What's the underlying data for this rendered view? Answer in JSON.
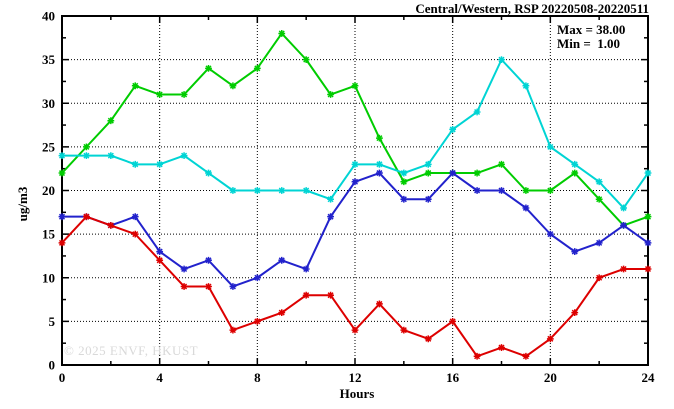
{
  "title": "Central/Western, RSP 20220508-20220511",
  "annotations": {
    "max_label": "Max = 38.00",
    "min_label": "Min =  1.00"
  },
  "watermark": "© 2025 ENVF, HKUST",
  "chart_data": {
    "type": "line",
    "title": "Central/Western, RSP 20220508-20220511",
    "xlabel": "Hours",
    "ylabel": "ug/m3",
    "xlim": [
      0,
      24
    ],
    "ylim": [
      0,
      40
    ],
    "x_major_ticks": [
      0,
      4,
      8,
      12,
      16,
      20,
      24
    ],
    "x_minor_ticks": [
      2,
      6,
      10,
      14,
      18,
      22
    ],
    "y_major_ticks": [
      0,
      5,
      10,
      15,
      20,
      25,
      30,
      35,
      40
    ],
    "y_minor_step": 2.5,
    "grid": "dotted black at major ticks",
    "legend": "none",
    "marker": "star",
    "stat_max": 38.0,
    "stat_min": 1.0,
    "x": [
      0,
      1,
      2,
      3,
      4,
      5,
      6,
      7,
      8,
      9,
      10,
      11,
      12,
      13,
      14,
      15,
      16,
      17,
      18,
      19,
      20,
      21,
      22,
      23,
      24
    ],
    "series": [
      {
        "name": "green-series",
        "color": "#00cc00",
        "values": [
          22,
          25,
          28,
          32,
          31,
          31,
          34,
          32,
          34,
          38,
          35,
          31,
          32,
          26,
          21,
          22,
          22,
          22,
          23,
          20,
          20,
          22,
          19,
          16,
          17
        ]
      },
      {
        "name": "cyan-series",
        "color": "#00d4d4",
        "values": [
          24,
          24,
          24,
          23,
          23,
          24,
          22,
          20,
          20,
          20,
          20,
          19,
          23,
          23,
          22,
          23,
          27,
          29,
          35,
          32,
          25,
          23,
          21,
          18,
          22
        ]
      },
      {
        "name": "blue-series",
        "color": "#2222cc",
        "values": [
          17,
          17,
          16,
          17,
          13,
          11,
          12,
          9,
          10,
          12,
          11,
          17,
          21,
          22,
          19,
          19,
          22,
          20,
          20,
          18,
          15,
          13,
          14,
          16,
          14
        ]
      },
      {
        "name": "red-series",
        "color": "#dd0000",
        "values": [
          14,
          17,
          16,
          15,
          12,
          9,
          9,
          4,
          5,
          6,
          8,
          8,
          4,
          7,
          4,
          3,
          5,
          1,
          2,
          1,
          3,
          6,
          10,
          11,
          11
        ]
      }
    ]
  }
}
